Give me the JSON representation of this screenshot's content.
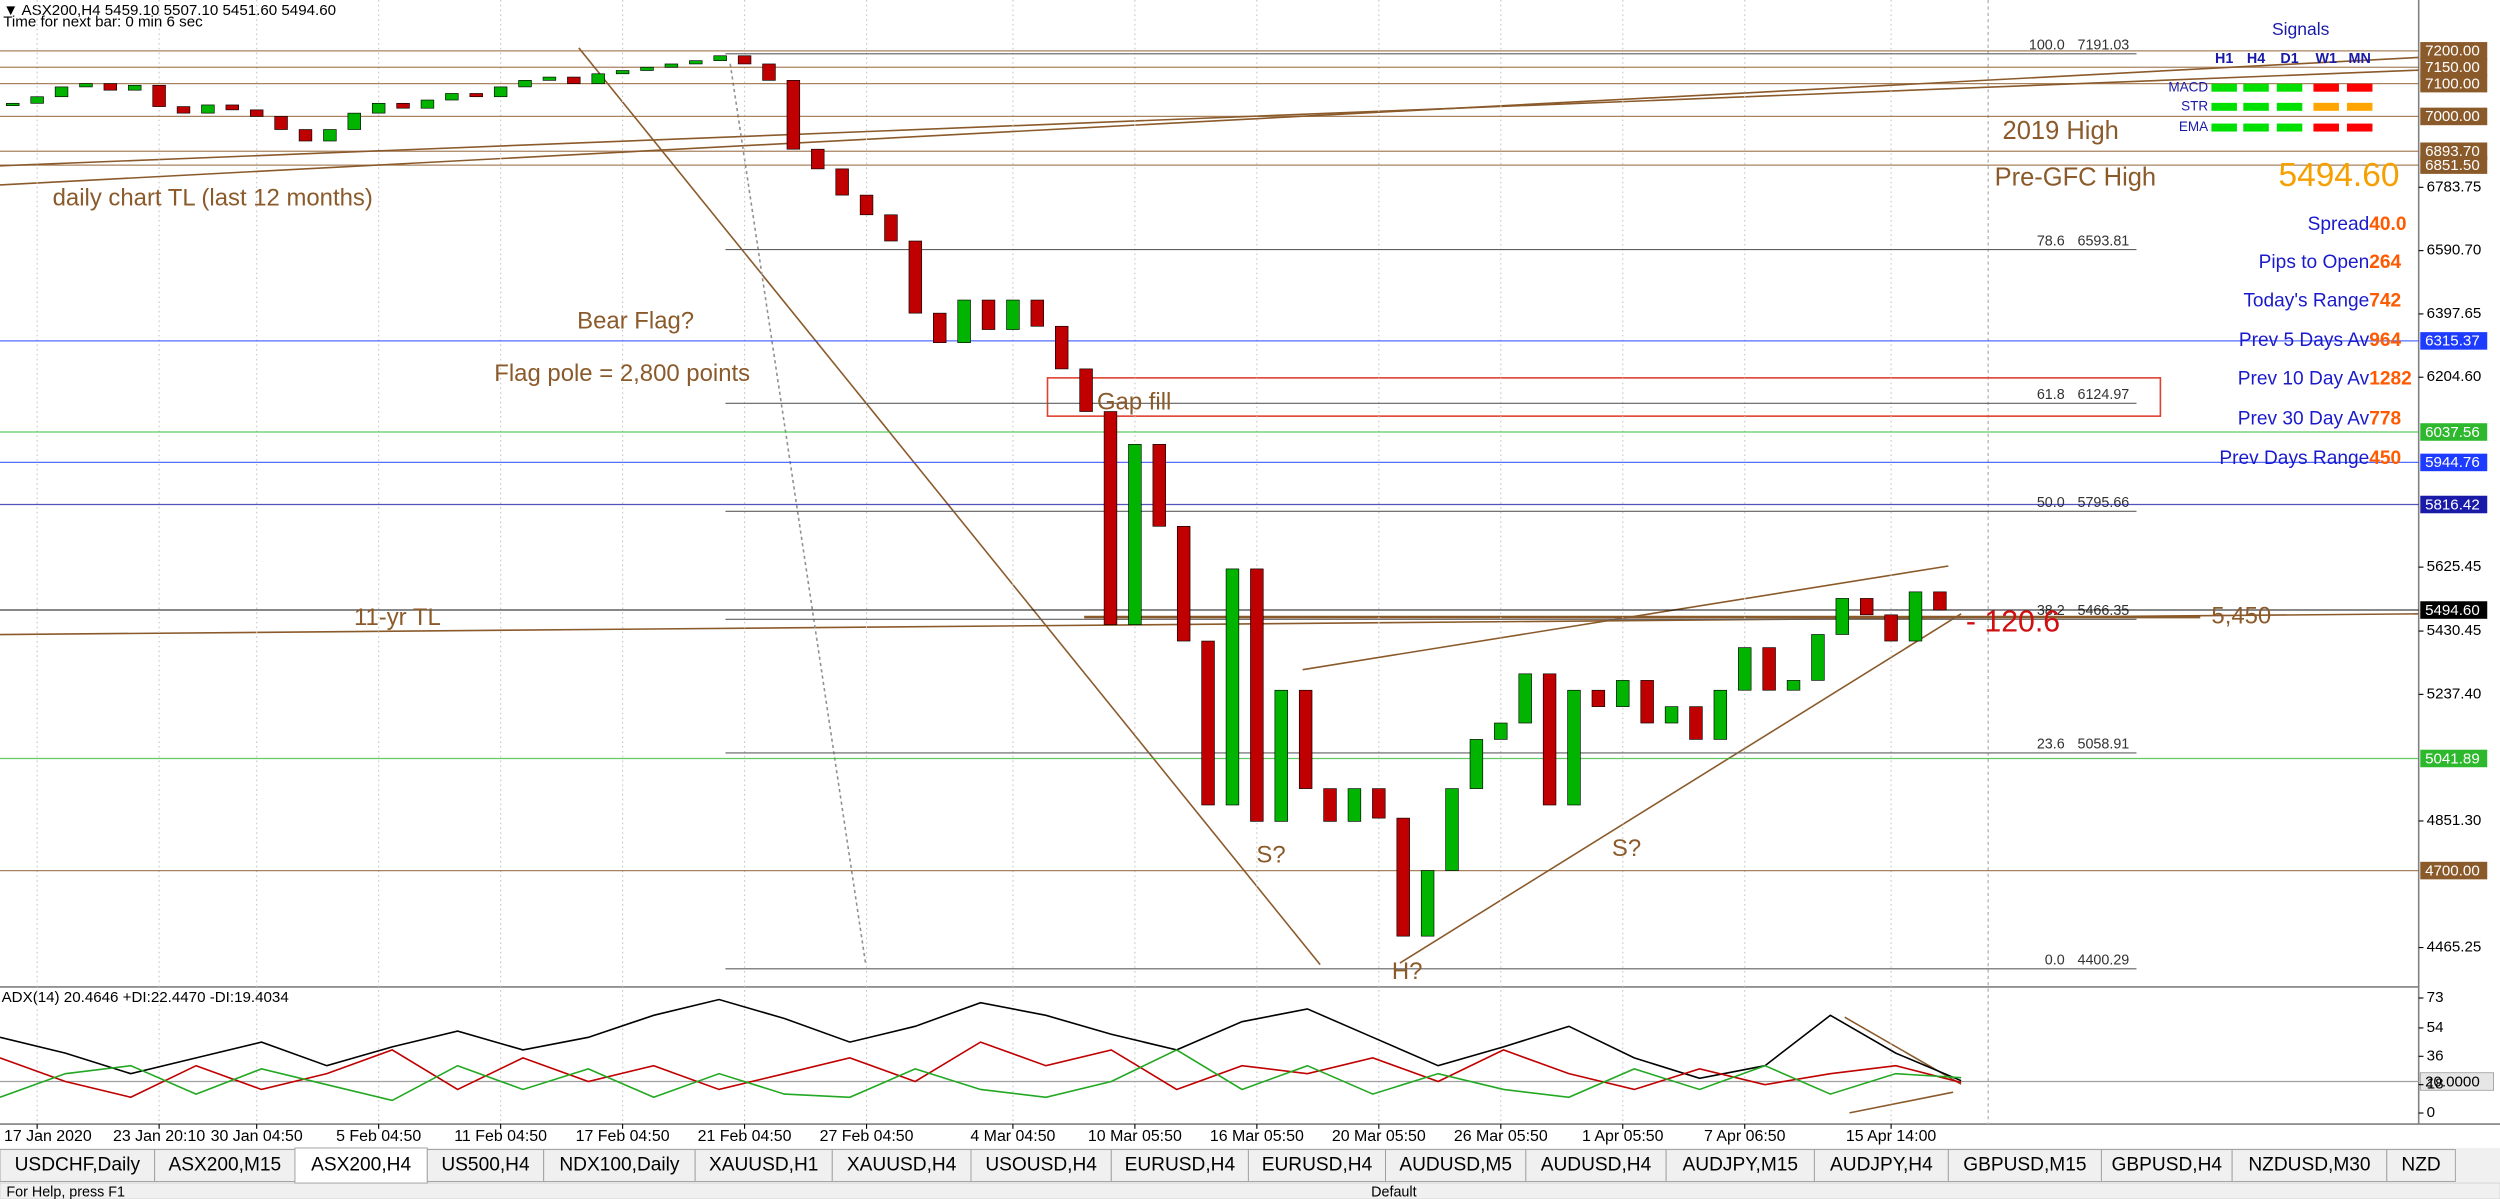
{
  "chart_data": [
    {
      "type": "candlestick",
      "title": "▼ ASX200,H4  5459.10 5507.10 5451.60 5494.60",
      "subtitle": "Time for next bar: 0 min 6 sec",
      "categories": [
        null,
        "17 Jan 2020",
        null,
        null,
        null,
        null,
        "23 Jan 20:10",
        null,
        null,
        null,
        "30 Jan 04:50",
        null,
        null,
        null,
        null,
        "5 Feb 04:50",
        null,
        null,
        null,
        null,
        "11 Feb 04:50",
        null,
        null,
        null,
        null,
        "17 Feb 04:50",
        null,
        null,
        null,
        null,
        "21 Feb 04:50",
        null,
        null,
        null,
        null,
        "27 Feb 04:50",
        null,
        null,
        null,
        null,
        null,
        "4 Mar 04:50",
        null,
        null,
        null,
        null,
        "10 Mar 05:50",
        null,
        null,
        null,
        null,
        "16 Mar 05:50",
        null,
        null,
        null,
        null,
        "20 Mar 05:50",
        null,
        null,
        null,
        null,
        "26 Mar 05:50",
        null,
        null,
        null,
        null,
        "1 Apr 05:50",
        null,
        null,
        null,
        null,
        "7 Apr 06:50",
        null,
        null,
        null,
        null,
        null,
        "15 Apr 14:00",
        null,
        null
      ],
      "series": [
        {
          "up_color": "#00b400",
          "down_color": "#c00000",
          "values": [
            7040,
            7060,
            7090,
            7100,
            7080,
            7095,
            7030,
            7010,
            7035,
            7020,
            7000,
            6960,
            6925,
            6960,
            7010,
            7040,
            7025,
            7050,
            7070,
            7060,
            7090,
            7110,
            7120,
            7100,
            7130,
            7140,
            7150,
            7160,
            7170,
            7185,
            7160,
            7110,
            6900,
            6840,
            6760,
            6700,
            6620,
            6400,
            6310,
            6440,
            6350,
            6440,
            6360,
            6230,
            6100,
            5450,
            6000,
            5750,
            5400,
            4900,
            5620,
            4850,
            5250,
            4950,
            4850,
            4950,
            4860,
            4500,
            4700,
            4950,
            5100,
            5150,
            5300,
            4900,
            5250,
            5200,
            5280,
            5150,
            5200,
            5100,
            5250,
            5380,
            5250,
            5280,
            5420,
            5530,
            5480,
            5400,
            5550,
            5494.6
          ]
        }
      ],
      "ylim": [
        4350,
        7355
      ],
      "yticks": [
        {
          "value": 6783.75,
          "label": "6783.75"
        },
        {
          "value": 6590.7,
          "label": "6590.70"
        },
        {
          "value": 6397.65,
          "label": "6397.65"
        },
        {
          "value": 6204.6,
          "label": "6204.60"
        },
        {
          "value": 5625.45,
          "label": "5625.45"
        },
        {
          "value": 5430.45,
          "label": "5430.45"
        },
        {
          "value": 5237.4,
          "label": "5237.40"
        },
        {
          "value": 4851.3,
          "label": "4851.30"
        },
        {
          "value": 4465.25,
          "label": "4465.25"
        }
      ],
      "levels": [
        {
          "value": 7200,
          "label": "7200.00",
          "color": "#8b5a2b"
        },
        {
          "value": 7150,
          "label": "7150.00",
          "color": "#8b5a2b"
        },
        {
          "value": 7100,
          "label": "7100.00",
          "color": "#8b5a2b"
        },
        {
          "value": 7000,
          "label": "7000.00",
          "color": "#8b5a2b"
        },
        {
          "value": 6893.7,
          "label": "6893.70",
          "color": "#8b5a2b"
        },
        {
          "value": 6851.5,
          "label": "6851.50",
          "color": "#8b5a2b"
        },
        {
          "value": 6315.37,
          "label": "6315.37",
          "color": "#1e3cff"
        },
        {
          "value": 6037.56,
          "label": "6037.56",
          "color": "#2db82d"
        },
        {
          "value": 5944.76,
          "label": "5944.76",
          "color": "#1e3cff"
        },
        {
          "value": 5816.42,
          "label": "5816.42",
          "color": "#1a1aa8"
        },
        {
          "value": 5494.6,
          "label": "5494.60",
          "color": "#000000"
        },
        {
          "value": 5041.89,
          "label": "5041.89",
          "color": "#2db82d"
        },
        {
          "value": 4700,
          "label": "4700.00",
          "color": "#8b5a2b"
        }
      ],
      "fib": [
        {
          "ratio": "100.0",
          "price": 7191.03
        },
        {
          "ratio": "78.6",
          "price": 6593.81
        },
        {
          "ratio": "61.8",
          "price": 6124.97
        },
        {
          "ratio": "50.0",
          "price": 5795.66
        },
        {
          "ratio": "38.2",
          "price": 5466.35
        },
        {
          "ratio": "23.6",
          "price": 5058.91
        },
        {
          "ratio": "0.0",
          "price": 4400.29
        }
      ],
      "grid": true
    },
    {
      "type": "line",
      "title": "ADX(14) 20.4646 +DI:22.4470 -DI:19.4034",
      "series": [
        {
          "color": "#000000",
          "values": [
            48,
            38,
            25,
            35,
            45,
            30,
            42,
            52,
            40,
            48,
            62,
            72,
            60,
            45,
            55,
            70,
            62,
            50,
            40,
            58,
            66,
            48,
            30,
            42,
            55,
            35,
            22,
            30,
            62,
            38,
            20.5
          ]
        },
        {
          "color": "#c00000",
          "values": [
            35,
            20,
            10,
            30,
            15,
            25,
            40,
            15,
            35,
            20,
            30,
            15,
            25,
            35,
            20,
            45,
            30,
            40,
            15,
            30,
            25,
            35,
            20,
            40,
            25,
            15,
            28,
            18,
            25,
            30,
            19.4
          ]
        },
        {
          "color": "#22a822",
          "values": [
            10,
            25,
            30,
            12,
            28,
            18,
            8,
            30,
            15,
            28,
            10,
            25,
            12,
            10,
            28,
            15,
            10,
            20,
            40,
            15,
            30,
            12,
            25,
            15,
            10,
            28,
            15,
            30,
            12,
            25,
            22.4
          ]
        }
      ],
      "ylim": [
        -7,
        79
      ],
      "yticks": [
        73,
        54,
        36,
        18,
        0
      ],
      "levels": [
        {
          "value": 20,
          "label": "20.0000",
          "color": "#a0a0a0"
        }
      ]
    }
  ],
  "annotations": [
    {
      "text": "daily chart TL (last 12 months)",
      "color": "#8b5a2b"
    },
    {
      "text": "Bear Flag?",
      "color": "#8b5a2b"
    },
    {
      "text": "Flag pole = 2,800 points",
      "color": "#8b5a2b"
    },
    {
      "text": "Gap fill",
      "color": "#8b5a2b"
    },
    {
      "text": "11-yr TL",
      "color": "#8b5a2b"
    },
    {
      "text": "S?",
      "color": "#8b5a2b"
    },
    {
      "text": "S?",
      "color": "#8b5a2b"
    },
    {
      "text": "H?",
      "color": "#8b5a2b"
    },
    {
      "text": "2019 High",
      "color": "#8b5a2b"
    },
    {
      "text": "Pre-GFC High",
      "color": "#8b5a2b"
    },
    {
      "text": "5,450",
      "color": "#8b5a2b"
    },
    {
      "text": "- 120.6",
      "color": "#d01010"
    }
  ],
  "signals": {
    "title": "Signals",
    "columns": [
      "H1",
      "H4",
      "D1",
      "W1",
      "MN"
    ],
    "rows": [
      {
        "name": "MACD",
        "colors": [
          "#00e000",
          "#00e000",
          "#00e000",
          "#ff0000",
          "#ff0000"
        ]
      },
      {
        "name": "STR",
        "colors": [
          "#00e000",
          "#00e000",
          "#00e000",
          "#ffa500",
          "#ffa500"
        ]
      },
      {
        "name": "EMA",
        "colors": [
          "#00e000",
          "#00e000",
          "#00e000",
          "#ff0000",
          "#ff0000"
        ]
      }
    ]
  },
  "info_panel": {
    "price": "5494.60",
    "rows": [
      {
        "label": "Spread",
        "value": "40.0"
      },
      {
        "label": "Pips to Open",
        "value": "264"
      },
      {
        "label": "Today's Range",
        "value": "742"
      },
      {
        "label": "Prev 5 Days Av",
        "value": "964"
      },
      {
        "label": "Prev 10 Day Av",
        "value": "1282"
      },
      {
        "label": "Prev 30 Day Av",
        "value": "778"
      },
      {
        "label": "Prev Days Range",
        "value": "450"
      }
    ]
  },
  "tabs": {
    "items": [
      "USDCHF,Daily",
      "ASX200,M15",
      "ASX200,H4",
      "US500,H4",
      "NDX100,Daily",
      "XAUUSD,H1",
      "XAUUSD,H4",
      "USOUSD,H4",
      "EURUSD,H4",
      "EURUSD,H4",
      "AUDUSD,M5",
      "AUDUSD,H4",
      "AUDJPY,M15",
      "AUDJPY,H4",
      "GBPUSD,M15",
      "GBPUSD,H4",
      "NZDUSD,M30",
      "NZD"
    ],
    "active": 2
  },
  "status_bar": {
    "help": "For Help, press F1",
    "profile": "Default"
  }
}
